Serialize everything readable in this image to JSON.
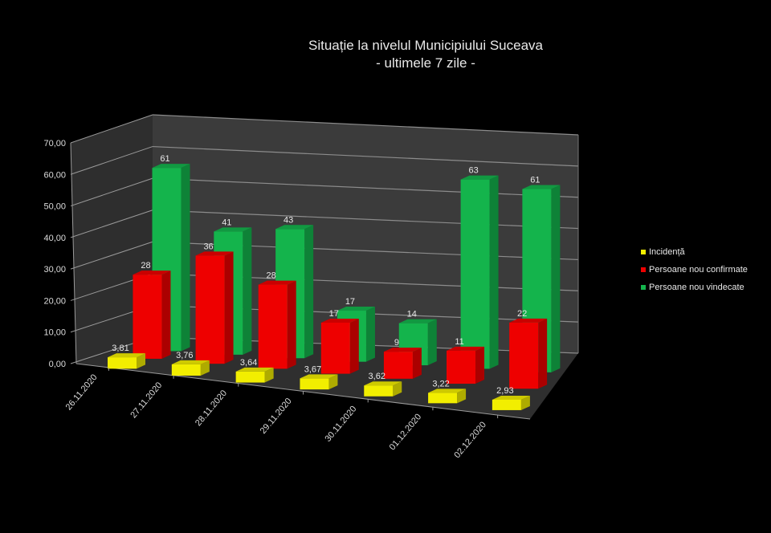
{
  "chart_data": {
    "type": "bar",
    "subtype": "3d-clustered-bar",
    "title": "Situație la nivelul Municipiului Suceava",
    "subtitle": "- ultimele 7 zile -",
    "xlabel": "",
    "ylabel": "",
    "ylim": [
      0,
      70
    ],
    "y_ticks": [
      "0,00",
      "10,00",
      "20,00",
      "30,00",
      "40,00",
      "50,00",
      "60,00",
      "70,00"
    ],
    "grid": true,
    "legend_position": "right",
    "categories": [
      "26.11.2020",
      "27.11.2020",
      "28.11.2020",
      "29.11.2020",
      "30.11.2020",
      "01.12.2020",
      "02.12.2020"
    ],
    "series": [
      {
        "name": "Incidență",
        "color": "#f2ee00",
        "values": [
          3.81,
          3.76,
          3.64,
          3.67,
          3.62,
          3.22,
          2.93
        ],
        "labels": [
          "3,81",
          "3,76",
          "3,64",
          "3,67",
          "3,62",
          "3,22",
          "2,93"
        ]
      },
      {
        "name": "Persoane nou confirmate",
        "color": "#ee0000",
        "values": [
          28,
          36,
          28,
          17,
          9,
          11,
          22
        ],
        "labels": [
          "28",
          "36",
          "28",
          "17",
          "9",
          "11",
          "22"
        ]
      },
      {
        "name": "Persoane nou vindecate",
        "color": "#14b44c",
        "values": [
          61,
          41,
          43,
          17,
          14,
          63,
          61
        ],
        "labels": [
          "61",
          "41",
          "43",
          "17",
          "14",
          "63",
          "61"
        ]
      }
    ]
  },
  "title": {
    "line1": "Situație la nivelul Municipiului Suceava",
    "line2": "- ultimele 7 zile -"
  },
  "legend": [
    {
      "label": "Incidență",
      "color": "#f2ee00"
    },
    {
      "label": "Persoane nou confirmate",
      "color": "#ee0000"
    },
    {
      "label": "Persoane nou vindecate",
      "color": "#14b44c"
    }
  ]
}
